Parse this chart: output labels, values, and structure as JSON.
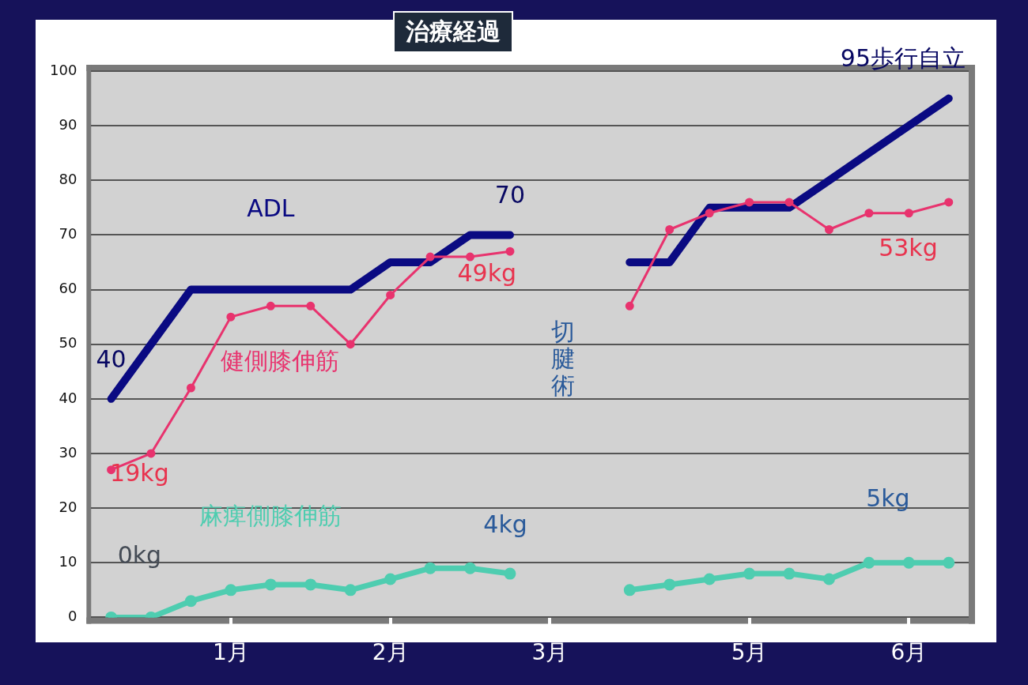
{
  "chart_data": {
    "type": "line",
    "title": "治療経過",
    "categories": [
      null,
      null,
      null,
      "1月",
      null,
      null,
      null,
      "2月",
      null,
      null,
      null,
      "3月",
      null,
      null,
      null,
      null,
      "5月",
      null,
      null,
      null,
      "6月",
      null
    ],
    "ylim": [
      0,
      100
    ],
    "yticks": [
      0,
      10,
      20,
      30,
      40,
      50,
      60,
      70,
      80,
      90,
      100
    ],
    "grid": "y",
    "legend": false,
    "series": [
      {
        "name": "健側膝伸筋",
        "color": "#e8336e",
        "marker": "circle",
        "values": [
          27,
          30,
          42,
          55,
          57,
          57,
          50,
          59,
          66,
          66,
          67,
          null,
          null,
          57,
          71,
          74,
          76,
          76,
          71,
          74,
          74,
          76
        ]
      },
      {
        "name": "麻痺側膝伸筋",
        "color": "#4ecdb0",
        "marker": "circle",
        "values": [
          0,
          0,
          3,
          5,
          6,
          6,
          5,
          7,
          9,
          9,
          8,
          null,
          null,
          5,
          6,
          7,
          8,
          8,
          7,
          10,
          10,
          10
        ]
      },
      {
        "name": "ADL",
        "color": "#0a0a82",
        "marker": "none",
        "values": [
          40,
          50,
          60,
          60,
          60,
          60,
          60,
          65,
          65,
          70,
          70,
          null,
          null,
          65,
          65,
          75,
          75,
          75,
          80,
          85,
          90,
          95
        ],
        "value_labels": [
          "40",
          null,
          null,
          null,
          null,
          null,
          null,
          null,
          null,
          null,
          "70",
          null,
          null,
          null,
          null,
          null,
          null,
          null,
          null,
          null,
          null,
          "95歩行自立"
        ]
      }
    ],
    "annotations": [
      "19kg",
      "49kg",
      "53kg",
      "0kg",
      "4kg",
      "5kg",
      "切腱術"
    ]
  }
}
